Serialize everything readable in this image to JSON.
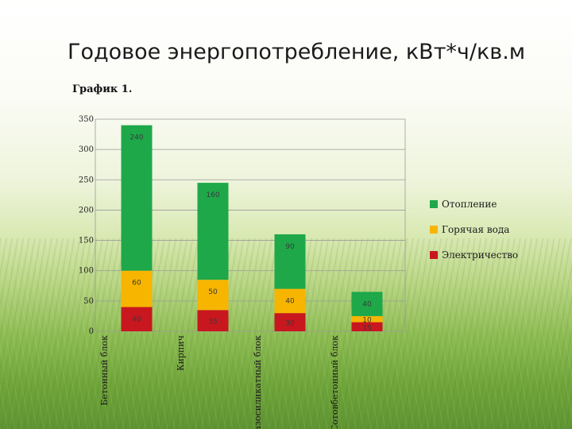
{
  "page": {
    "title": "Годовое энергопотребление, кВт*ч/кв.м",
    "subtitle": "График 1."
  },
  "chart_data": {
    "type": "bar",
    "stacked": true,
    "title": "",
    "xlabel": "",
    "ylabel": "",
    "ylim": [
      0,
      350
    ],
    "yticks": [
      "0",
      "50",
      "100",
      "150",
      "200",
      "250",
      "300",
      "350"
    ],
    "grid": true,
    "legend_position": "right",
    "categories": [
      "Бетонный блок",
      "Кирпич",
      "Газосиликатный блок",
      "Сотовбетонный блок"
    ],
    "series": [
      {
        "name": "Электричество",
        "color": "#c8171e",
        "values": [
          40,
          35,
          30,
          15
        ],
        "labels": [
          "40",
          "35",
          "30",
          "15"
        ]
      },
      {
        "name": "Горячая вода",
        "color": "#f7b500",
        "values": [
          60,
          50,
          40,
          10
        ],
        "labels": [
          "60",
          "50",
          "40",
          "10"
        ]
      },
      {
        "name": "Отопление",
        "color": "#1ea84a",
        "values": [
          240,
          160,
          90,
          40
        ],
        "labels": [
          "240",
          "160",
          "90",
          "40"
        ]
      }
    ]
  }
}
